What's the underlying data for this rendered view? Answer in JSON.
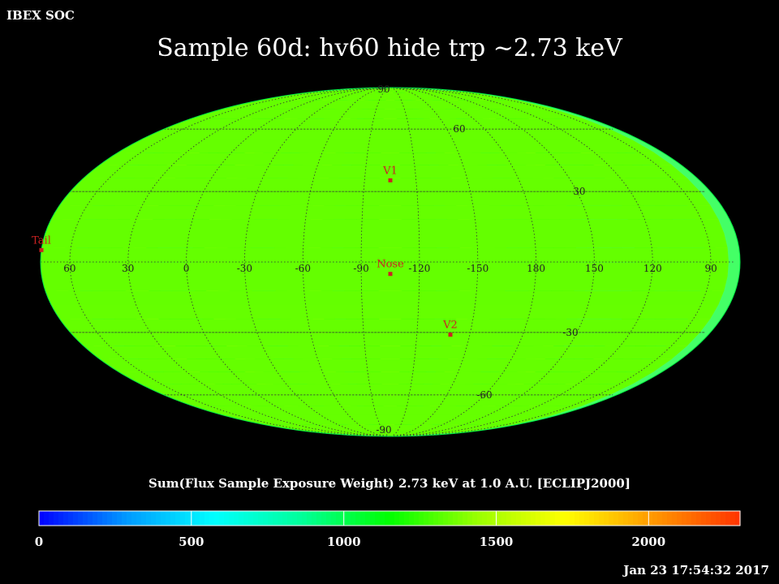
{
  "header": {
    "organization": "IBEX SOC",
    "title": "Sample 60d: hv60 hide trp ~2.73 keV",
    "timestamp": "Jan 23 17:54:32 2017"
  },
  "colorbar": {
    "title": "Sum(Flux Sample Exposure Weight)  2.73 keV at 1.0 A.U. [ECLIPJ2000]",
    "min": 0,
    "max": 2300,
    "ticks": [
      "0",
      "500",
      "1000",
      "1500",
      "2000"
    ],
    "tick_values": [
      0,
      500,
      1000,
      1500,
      2000
    ],
    "colors": [
      "#0000ff",
      "#0099ff",
      "#00ffff",
      "#00ff99",
      "#00ff00",
      "#99ff00",
      "#ffff00",
      "#ff9900",
      "#ff3300"
    ]
  },
  "map": {
    "projection": "Mollweide",
    "grid": true,
    "longitude_labels": [
      "60",
      "30",
      "0",
      "-30",
      "-60",
      "-90",
      "-120",
      "-150",
      "180",
      "150",
      "120",
      "90"
    ],
    "longitude_values": [
      60,
      30,
      0,
      -30,
      -60,
      -90,
      -120,
      -150,
      -180,
      150,
      120,
      90
    ],
    "latitude_labels": [
      "90",
      "60",
      "30",
      "-30",
      "-60",
      "-90"
    ],
    "latitude_values": [
      90,
      60,
      30,
      -30,
      -60,
      -90
    ],
    "center_longitude": -105,
    "markers": [
      {
        "label": "V1",
        "lon": -105,
        "lat": 35
      },
      {
        "label": "Nose",
        "lon": -105,
        "lat": -5
      },
      {
        "label": "V2",
        "lon": -139,
        "lat": -31
      },
      {
        "label": "Tail",
        "lon": 75,
        "lat": 5
      }
    ]
  }
}
